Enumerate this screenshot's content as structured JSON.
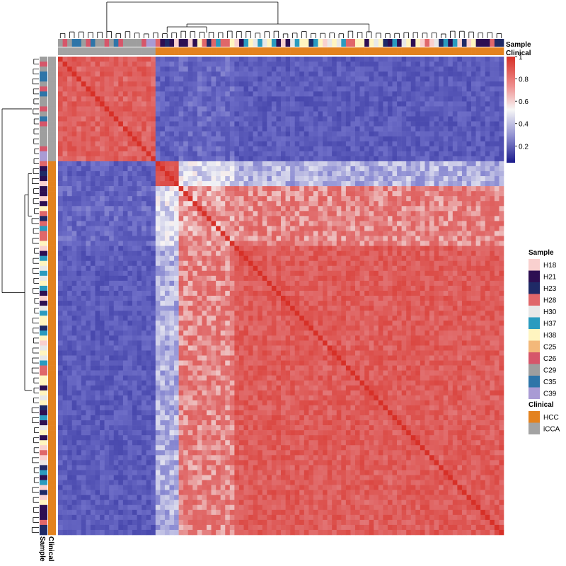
{
  "chart_data": {
    "type": "heatmap",
    "title": "",
    "xlabel": "",
    "ylabel": "",
    "value_range": [
      0,
      1
    ],
    "n_cells": 96,
    "clusters": [
      {
        "id": "A",
        "clinical": "iCCA",
        "share": 0.22
      },
      {
        "id": "B",
        "clinical": "HCC",
        "share": 0.05
      },
      {
        "id": "C",
        "clinical": "HCC",
        "share": 0.12
      },
      {
        "id": "D",
        "clinical": "HCC",
        "share": 0.61
      }
    ],
    "cluster_correlation": [
      [
        0.82,
        0.3,
        0.32,
        0.28
      ],
      [
        0.3,
        0.85,
        0.55,
        0.48
      ],
      [
        0.32,
        0.55,
        0.7,
        0.74
      ],
      [
        0.28,
        0.48,
        0.74,
        0.83
      ]
    ],
    "annotation_tracks": [
      "Sample",
      "Clinical"
    ],
    "colorbar": {
      "title": "",
      "ticks": [
        "1",
        "0.8",
        "0.6",
        "0.4",
        "0.2"
      ],
      "tick_values": [
        1,
        0.8,
        0.6,
        0.4,
        0.2
      ],
      "colors": [
        "#f7f7f7",
        "#d73027",
        "#f7f7f7",
        "#1a1a8c"
      ]
    },
    "legends": [
      {
        "title": "Sample",
        "entries": [
          {
            "label": "H18",
            "color": "#f9d0cf"
          },
          {
            "label": "H21",
            "color": "#2d0f52"
          },
          {
            "label": "H23",
            "color": "#1f2a66"
          },
          {
            "label": "H28",
            "color": "#e0676a"
          },
          {
            "label": "H30",
            "color": "#e8e8e8"
          },
          {
            "label": "H37",
            "color": "#2a9bbf"
          },
          {
            "label": "H38",
            "color": "#fff5c0"
          },
          {
            "label": "C25",
            "color": "#f3b87a"
          },
          {
            "label": "C26",
            "color": "#d6566a"
          },
          {
            "label": "C29",
            "color": "#9e9e9e"
          },
          {
            "label": "C35",
            "color": "#2e75a8"
          },
          {
            "label": "C39",
            "color": "#a99bd4"
          }
        ]
      },
      {
        "title": "Clinical",
        "entries": [
          {
            "label": "HCC",
            "color": "#e3821f"
          },
          {
            "label": "iCCA",
            "color": "#a3a3a3"
          }
        ]
      }
    ]
  }
}
